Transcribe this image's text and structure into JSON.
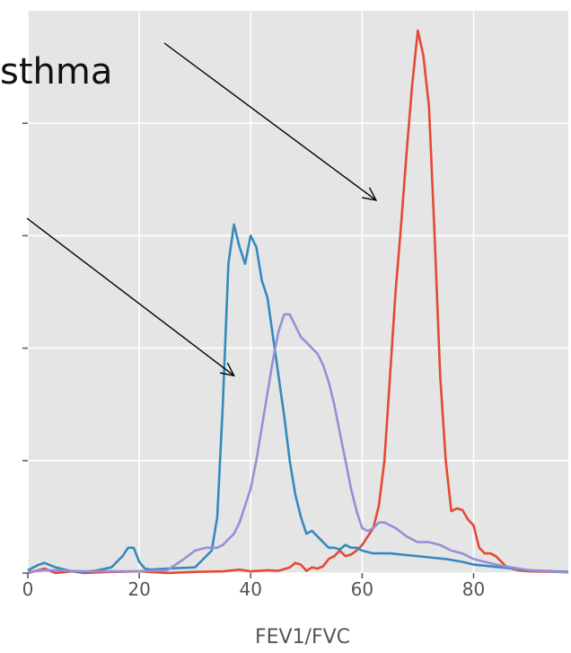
{
  "chart_data": {
    "type": "line",
    "title": "",
    "xlabel": "FEV1/FVC",
    "ylabel": "",
    "xlim": [
      0,
      97
    ],
    "ylim": [
      0,
      1
    ],
    "grid": true,
    "xticks": [
      0,
      20,
      40,
      60,
      80
    ],
    "xtick_labels": [
      "0",
      "20",
      "40",
      "60",
      "80"
    ],
    "yticks": [
      0,
      0.2,
      0.4,
      0.6,
      0.8
    ],
    "colors": {
      "background": "#e5e5e5",
      "grid": "#ffffff"
    },
    "annotations": [
      {
        "text": "sthma",
        "arrow_to": [
          62.5,
          0.663
        ]
      },
      {
        "text": "",
        "arrow_to": [
          37,
          0.351
        ]
      }
    ],
    "series": [
      {
        "color": "#e24a33",
        "x": [
          0,
          3,
          5,
          8,
          10,
          15,
          20,
          25,
          30,
          35,
          38,
          40,
          43,
          45,
          47,
          48,
          49,
          50,
          51,
          52,
          53,
          54,
          55,
          56,
          57,
          58,
          59,
          60,
          61,
          62,
          63,
          64,
          65,
          66,
          67,
          68,
          69,
          70,
          71,
          72,
          73,
          74,
          75,
          76,
          77,
          78,
          79,
          80,
          81,
          82,
          83,
          84,
          85,
          86,
          88,
          90,
          95,
          97
        ],
        "y": [
          0.0,
          0.008,
          0.0,
          0.003,
          0.0,
          0.002,
          0.003,
          0.0,
          0.002,
          0.003,
          0.006,
          0.003,
          0.005,
          0.004,
          0.01,
          0.018,
          0.015,
          0.004,
          0.01,
          0.008,
          0.012,
          0.025,
          0.03,
          0.04,
          0.03,
          0.033,
          0.04,
          0.05,
          0.065,
          0.08,
          0.12,
          0.2,
          0.35,
          0.5,
          0.62,
          0.75,
          0.87,
          0.965,
          0.92,
          0.83,
          0.6,
          0.35,
          0.2,
          0.11,
          0.115,
          0.112,
          0.095,
          0.085,
          0.045,
          0.035,
          0.035,
          0.03,
          0.02,
          0.01,
          0.005,
          0.003,
          0.002,
          0.002
        ]
      },
      {
        "color": "#348abd",
        "x": [
          0,
          1,
          2,
          3,
          5,
          8,
          10,
          12,
          15,
          17,
          18,
          19,
          20,
          21,
          22,
          25,
          30,
          33,
          34,
          35,
          36,
          37,
          38,
          39,
          40,
          41,
          42,
          43,
          44,
          45,
          46,
          47,
          48,
          49,
          50,
          51,
          52,
          53,
          54,
          55,
          56,
          57,
          58,
          59,
          60,
          62,
          65,
          68,
          70,
          72,
          75,
          78,
          80,
          85,
          90,
          97
        ],
        "y": [
          0.005,
          0.01,
          0.015,
          0.018,
          0.01,
          0.003,
          0.002,
          0.004,
          0.01,
          0.03,
          0.045,
          0.045,
          0.02,
          0.008,
          0.006,
          0.008,
          0.01,
          0.04,
          0.1,
          0.3,
          0.55,
          0.62,
          0.58,
          0.55,
          0.6,
          0.58,
          0.52,
          0.49,
          0.42,
          0.35,
          0.28,
          0.2,
          0.14,
          0.1,
          0.07,
          0.075,
          0.065,
          0.055,
          0.045,
          0.045,
          0.042,
          0.05,
          0.045,
          0.045,
          0.04,
          0.035,
          0.035,
          0.032,
          0.03,
          0.028,
          0.025,
          0.02,
          0.015,
          0.01,
          0.005,
          0.002
        ]
      },
      {
        "color": "#988ed5",
        "x": [
          0,
          3,
          5,
          10,
          15,
          20,
          25,
          28,
          30,
          32,
          34,
          35,
          36,
          37,
          38,
          39,
          40,
          41,
          42,
          43,
          44,
          45,
          46,
          47,
          48,
          49,
          50,
          51,
          52,
          53,
          54,
          55,
          56,
          57,
          58,
          59,
          60,
          61,
          62,
          63,
          64,
          65,
          66,
          68,
          70,
          72,
          74,
          76,
          78,
          80,
          82,
          85,
          90,
          95,
          97
        ],
        "y": [
          0.002,
          0.005,
          0.005,
          0.003,
          0.003,
          0.003,
          0.005,
          0.025,
          0.04,
          0.045,
          0.045,
          0.05,
          0.06,
          0.07,
          0.09,
          0.12,
          0.15,
          0.2,
          0.26,
          0.32,
          0.38,
          0.43,
          0.46,
          0.46,
          0.44,
          0.42,
          0.41,
          0.4,
          0.39,
          0.37,
          0.34,
          0.3,
          0.25,
          0.2,
          0.15,
          0.11,
          0.08,
          0.075,
          0.08,
          0.09,
          0.09,
          0.085,
          0.08,
          0.065,
          0.055,
          0.055,
          0.05,
          0.04,
          0.035,
          0.025,
          0.02,
          0.013,
          0.005,
          0.002,
          0.001
        ]
      }
    ]
  }
}
